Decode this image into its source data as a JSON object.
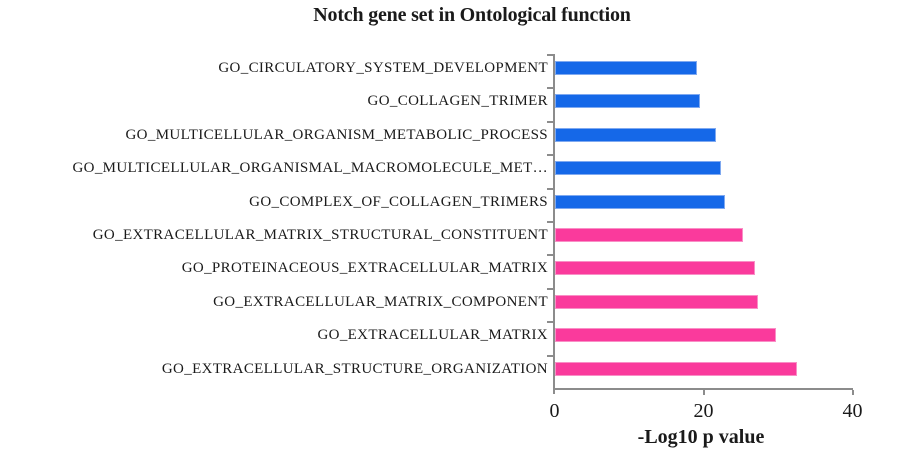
{
  "chart_data": {
    "type": "bar",
    "orientation": "horizontal",
    "title": "Notch gene set in Ontological function",
    "xlabel": "-Log10 p value",
    "xlim": [
      0,
      40
    ],
    "x_ticks": [
      0,
      20,
      40
    ],
    "x_tick_labels": [
      "0",
      "20",
      "40"
    ],
    "grid": false,
    "legend": "none",
    "categories": [
      "GO_CIRCULATORY_SYSTEM_DEVELOPMENT",
      "GO_COLLAGEN_TRIMER",
      "GO_MULTICELLULAR_ORGANISM_METABOLIC_PROCESS",
      "GO_MULTICELLULAR_ORGANISMAL_MACROMOLECULE_MET…",
      "GO_COMPLEX_OF_COLLAGEN_TRIMERS",
      "GO_EXTRACELLULAR_MATRIX_STRUCTURAL_CONSTITUENT",
      "GO_PROTEINACEOUS_EXTRACELLULAR_MATRIX",
      "GO_EXTRACELLULAR_MATRIX_COMPONENT",
      "GO_EXTRACELLULAR_MATRIX",
      "GO_EXTRACELLULAR_STRUCTURE_ORGANIZATION"
    ],
    "values": [
      19.1,
      19.4,
      21.6,
      22.3,
      22.8,
      25.2,
      26.9,
      27.2,
      29.7,
      32.5
    ],
    "bar_color_keys": [
      "blue",
      "blue",
      "blue",
      "blue",
      "blue",
      "pink",
      "pink",
      "pink",
      "pink",
      "pink"
    ],
    "palette": {
      "blue_fill": "#1568E8",
      "blue_border": "#7FA9F0",
      "pink_fill": "#FA3A9C",
      "pink_border": "#F98FC6",
      "axis": "#8C8C8C",
      "text": "#1a1a1a"
    }
  }
}
